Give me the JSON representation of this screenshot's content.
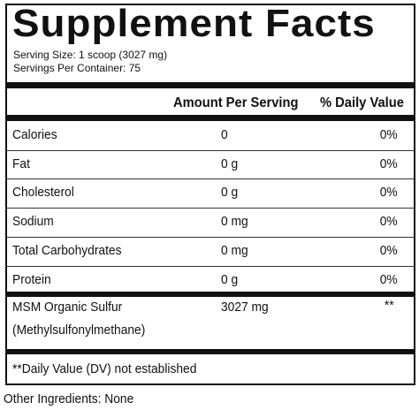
{
  "header": {
    "title": "Supplement Facts",
    "serving_size": "Serving Size: 1 scoop (3027 mg)",
    "servings_per_container": "Servings Per Container: 75"
  },
  "table": {
    "columns": [
      "Amount Per Serving",
      "% Daily Value"
    ],
    "rows": [
      {
        "name": "Calories",
        "amount": "0",
        "daily_value": "0%"
      },
      {
        "name": "Fat",
        "amount": "0 g",
        "daily_value": "0%"
      },
      {
        "name": "Cholesterol",
        "amount": "0 g",
        "daily_value": "0%"
      },
      {
        "name": "Sodium",
        "amount": "0 mg",
        "daily_value": "0%"
      },
      {
        "name": "Total Carbohydrates",
        "amount": "0 mg",
        "daily_value": "0%"
      },
      {
        "name": "Protein",
        "amount": "0 g",
        "daily_value": "0%"
      }
    ],
    "special_row": {
      "name": "MSM Organic Sulfur",
      "subname": "(Methylsulfonylmethane)",
      "amount": "3027 mg",
      "daily_value": "**"
    }
  },
  "footnote": "**Daily Value (DV) not established",
  "other_ingredients": "Other Ingredients: None"
}
